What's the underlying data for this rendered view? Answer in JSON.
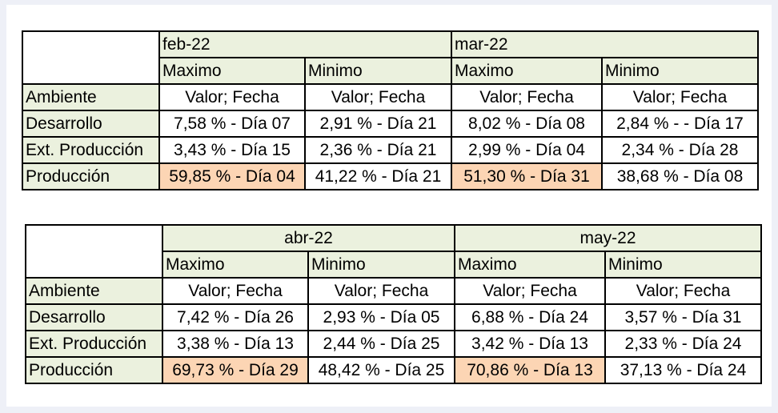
{
  "tables": [
    {
      "months": [
        "feb-22",
        "mar-22"
      ],
      "subheaders": [
        "Maximo",
        "Minimo",
        "Maximo",
        "Minimo"
      ],
      "rows": [
        {
          "label": "Ambiente",
          "cells": [
            "Valor; Fecha",
            "Valor; Fecha",
            "Valor; Fecha",
            "Valor; Fecha"
          ]
        },
        {
          "label": "Desarrollo",
          "cells": [
            "7,58 %  - Día 07",
            "2,91 %   - Día 21",
            "8,02 %  - Día 08",
            "2,84 %  -   - Día 17"
          ]
        },
        {
          "label": "Ext. Producción",
          "cells": [
            "3,43 %  - Día 15",
            "2,36 %   - Día 21",
            "2,99 %  - Día 04",
            "2,34 %  - Día 28"
          ]
        },
        {
          "label": "Producción",
          "cells": [
            "59,85 %  - Día 04",
            "41,22 %  - Día 21",
            "51,30 %   - Día 31",
            "38,68 %  - Día 08"
          ]
        }
      ]
    },
    {
      "months": [
        "abr-22",
        "may-22"
      ],
      "subheaders": [
        "Maximo",
        "Minimo",
        "Maximo",
        "Minimo"
      ],
      "rows": [
        {
          "label": "Ambiente",
          "cells": [
            "Valor; Fecha",
            "Valor; Fecha",
            "Valor; Fecha",
            "Valor; Fecha"
          ]
        },
        {
          "label": "Desarrollo",
          "cells": [
            "7,42 %   - Día 26",
            "2,93 %  - Día 05",
            "6,88 %  - Día 24",
            "3,57 %  - Día 31"
          ]
        },
        {
          "label": "Ext. Producción",
          "cells": [
            "3,38 %  - Día 13",
            "2,44 %  - Día 25",
            "3,42 %  - Día 13",
            "2,33 %  - Día 24"
          ]
        },
        {
          "label": "Producción",
          "cells": [
            "69,73 %  - Día 29",
            "48,42 %  - Día 25",
            "70,86 %  - Día 13",
            "37,13 %  - Día 24"
          ]
        }
      ]
    }
  ],
  "colors": {
    "header_fill": "#ebf1de",
    "highlight_fill": "#fcd5b4",
    "border": "#000000",
    "background": "#eef0f7"
  }
}
